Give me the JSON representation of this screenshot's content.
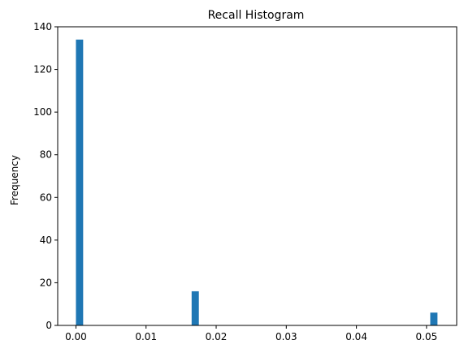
{
  "chart_data": {
    "type": "bar",
    "title": "Recall Histogram",
    "xlabel": "",
    "ylabel": "Frequency",
    "xlim": [
      -0.0026,
      0.0543
    ],
    "ylim": [
      0,
      140
    ],
    "x_ticks": [
      0.0,
      0.01,
      0.02,
      0.03,
      0.04,
      0.05
    ],
    "x_tick_labels": [
      "0.00",
      "0.01",
      "0.02",
      "0.03",
      "0.04",
      "0.05"
    ],
    "y_ticks": [
      0,
      20,
      40,
      60,
      80,
      100,
      120,
      140
    ],
    "y_tick_labels": [
      "0",
      "20",
      "40",
      "60",
      "80",
      "100",
      "120",
      "140"
    ],
    "bins": 50,
    "bars": [
      {
        "x_start": 0.0,
        "x_end": 0.00103,
        "value": 134
      },
      {
        "x_start": 0.0165,
        "x_end": 0.01753,
        "value": 16
      },
      {
        "x_start": 0.05053,
        "x_end": 0.05156,
        "value": 6
      }
    ],
    "bar_color": "#1f77b4",
    "grid": false,
    "legend": "none"
  }
}
